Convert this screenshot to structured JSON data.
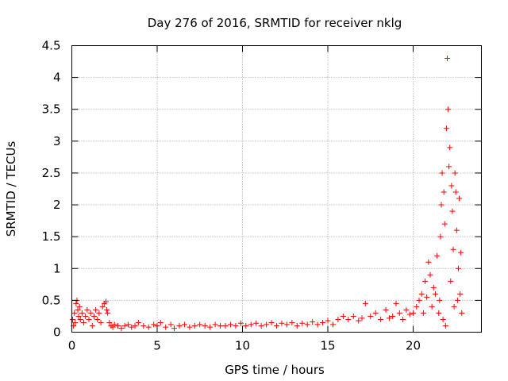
{
  "chart_data": {
    "type": "scatter",
    "title": "Day 276 of 2016, SRMTID for receiver nklg",
    "xlabel": "GPS time / hours",
    "ylabel": "SRMTID / TECUs",
    "xlim": [
      0,
      24
    ],
    "ylim": [
      0,
      4.5
    ],
    "x_ticks": [
      0,
      5,
      10,
      15,
      20
    ],
    "x_tick_labels": [
      "0",
      "5",
      "10",
      "15",
      "20"
    ],
    "y_ticks": [
      0,
      0.5,
      1,
      1.5,
      2,
      2.5,
      3,
      3.5,
      4,
      4.5
    ],
    "y_tick_labels": [
      "0",
      "0.5",
      "1",
      "1.5",
      "2",
      "2.5",
      "3",
      "3.5",
      "4",
      "4.5"
    ],
    "grid": true,
    "marker": "plus",
    "color": "#ff0000",
    "series": [
      {
        "name": "SRMTID",
        "x": [
          0.05,
          0.1,
          0.15,
          0.2,
          0.25,
          0.3,
          0.35,
          0.4,
          0.45,
          0.5,
          0.6,
          0.7,
          0.8,
          0.9,
          1.0,
          1.1,
          1.2,
          1.3,
          1.4,
          1.5,
          1.6,
          1.7,
          1.8,
          1.9,
          2.0,
          2.05,
          2.1,
          2.2,
          2.3,
          2.4,
          2.5,
          2.7,
          2.9,
          3.1,
          3.3,
          3.5,
          3.7,
          3.9,
          4.2,
          4.5,
          4.8,
          5.0,
          5.2,
          5.5,
          5.8,
          6.0,
          6.3,
          6.6,
          6.9,
          7.2,
          7.5,
          7.8,
          8.1,
          8.4,
          8.7,
          9.0,
          9.3,
          9.6,
          9.9,
          10.2,
          10.5,
          10.8,
          11.1,
          11.4,
          11.7,
          12.0,
          12.3,
          12.6,
          12.9,
          13.2,
          13.5,
          13.8,
          14.1,
          14.4,
          14.7,
          15.0,
          15.3,
          15.6,
          15.9,
          16.2,
          16.5,
          16.8,
          17.0,
          17.2,
          17.5,
          17.8,
          18.1,
          18.4,
          18.6,
          18.8,
          19.0,
          19.2,
          19.4,
          19.6,
          19.8,
          20.0,
          20.2,
          20.35,
          20.5,
          20.6,
          20.7,
          20.8,
          20.9,
          21.0,
          21.1,
          21.2,
          21.3,
          21.4,
          21.5,
          21.55,
          21.6,
          21.65,
          21.7,
          21.75,
          21.8,
          21.85,
          21.9,
          21.95,
          22.0,
          22.05,
          22.1,
          22.15,
          22.2,
          22.25,
          22.3,
          22.35,
          22.4,
          22.45,
          22.5,
          22.55,
          22.6,
          22.65,
          22.7,
          22.75,
          22.8,
          22.85
        ],
        "y": [
          0.2,
          0.1,
          0.3,
          0.15,
          0.45,
          0.5,
          0.35,
          0.25,
          0.4,
          0.2,
          0.3,
          0.15,
          0.25,
          0.35,
          0.2,
          0.3,
          0.1,
          0.25,
          0.35,
          0.2,
          0.3,
          0.15,
          0.4,
          0.45,
          0.48,
          0.35,
          0.3,
          0.15,
          0.1,
          0.08,
          0.12,
          0.1,
          0.06,
          0.1,
          0.12,
          0.08,
          0.1,
          0.15,
          0.1,
          0.08,
          0.12,
          0.1,
          0.15,
          0.08,
          0.12,
          0.06,
          0.1,
          0.12,
          0.08,
          0.1,
          0.12,
          0.1,
          0.08,
          0.12,
          0.1,
          0.1,
          0.12,
          0.1,
          0.14,
          0.1,
          0.12,
          0.14,
          0.1,
          0.12,
          0.15,
          0.1,
          0.14,
          0.12,
          0.15,
          0.1,
          0.14,
          0.12,
          0.16,
          0.12,
          0.15,
          0.18,
          0.12,
          0.2,
          0.25,
          0.2,
          0.25,
          0.18,
          0.22,
          0.45,
          0.25,
          0.3,
          0.2,
          0.35,
          0.22,
          0.25,
          0.45,
          0.3,
          0.2,
          0.35,
          0.28,
          0.3,
          0.4,
          0.5,
          0.6,
          0.3,
          0.8,
          0.55,
          1.1,
          0.9,
          0.4,
          0.7,
          0.6,
          1.2,
          0.3,
          0.5,
          1.5,
          2.0,
          2.5,
          0.2,
          2.2,
          1.7,
          0.1,
          3.2,
          4.3,
          3.5,
          2.6,
          2.9,
          0.8,
          2.3,
          1.9,
          1.3,
          0.4,
          2.5,
          2.2,
          1.6,
          0.5,
          1.0,
          2.1,
          0.6,
          1.25,
          0.3
        ]
      }
    ]
  }
}
